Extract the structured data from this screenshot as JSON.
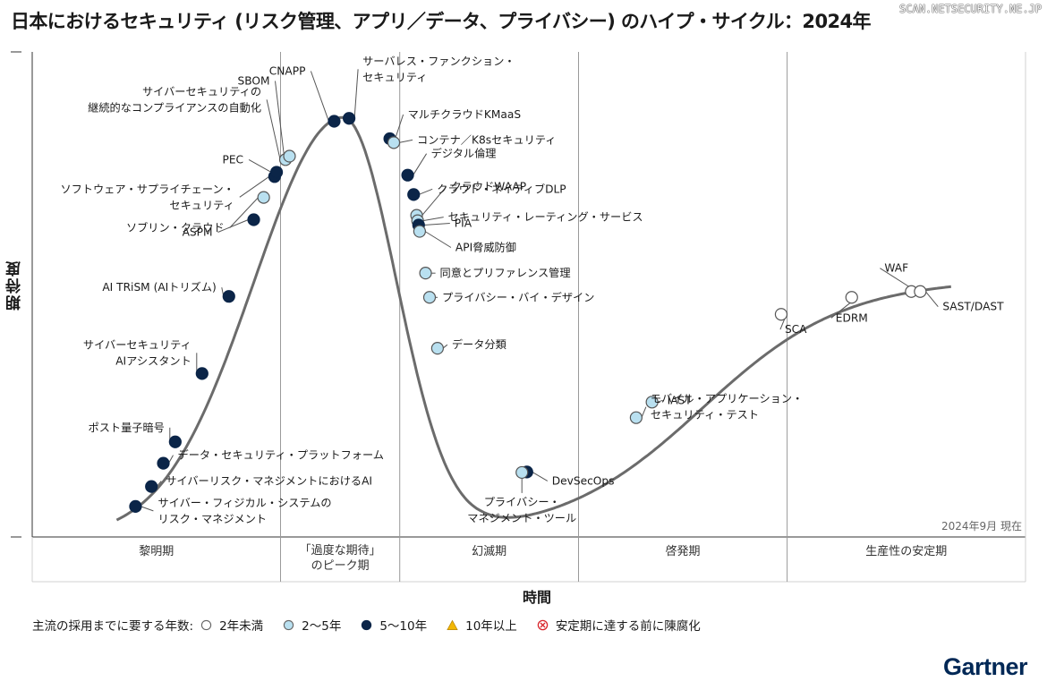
{
  "title": "日本におけるセキュリティ (リスク管理、アプリ／データ、プライバシー) のハイプ・サイクル：2024年",
  "watermark": "SCAN.NETSECURITY.NE.JP",
  "y_axis_label": "期待度",
  "x_axis_label": "時間",
  "as_of": "2024年9月 現在",
  "logo": "Gartner",
  "legend": {
    "title": "主流の採用までに要する年数:",
    "items": [
      {
        "key": "lt2",
        "label": "2年未満",
        "color": "#ffffff"
      },
      {
        "key": "2to5",
        "label": "2〜5年",
        "color": "#b9e0f0"
      },
      {
        "key": "5to10",
        "label": "5〜10年",
        "color": "#0b2548"
      },
      {
        "key": "gt10",
        "label": "10年以上",
        "color": "#f2b705"
      },
      {
        "key": "obsolete",
        "label": "安定期に達する前に陳腐化",
        "color": "#d9262c"
      }
    ]
  },
  "colors": {
    "lt2": "#ffffff",
    "2to5": "#b9e0f0",
    "5to10": "#0b2548",
    "curve": "#6b6b6b",
    "leader": "#555555"
  },
  "chart_data": {
    "type": "scatter",
    "x_range": [
      0,
      100
    ],
    "y_range": [
      0,
      100
    ],
    "phases": [
      {
        "name": "黎明期",
        "start": 0,
        "end": 25
      },
      {
        "name": "「過度な期待」のピーク期",
        "start": 25,
        "end": 37
      },
      {
        "name": "幻滅期",
        "start": 37,
        "end": 55
      },
      {
        "name": "啓発期",
        "start": 55,
        "end": 76
      },
      {
        "name": "生産性の安定期",
        "start": 76,
        "end": 100
      }
    ],
    "points": [
      {
        "name": "サイバー・フィジカル・システムのリスク・マネジメント",
        "lines": [
          "サイバー・フィジカル・システムの",
          "リスク・マネジメント"
        ],
        "x": 10.4,
        "y": 6.3,
        "cat": "5to10"
      },
      {
        "name": "サイバーリスク・マネジメントにおけるAI",
        "lines": [
          "サイバーリスク・マネジメントにおけるAI"
        ],
        "x": 12.0,
        "y": 10.4,
        "cat": "5to10"
      },
      {
        "name": "データ・セキュリティ・プラットフォーム",
        "lines": [
          "データ・セキュリティ・プラットフォーム"
        ],
        "x": 13.2,
        "y": 15.2,
        "cat": "5to10"
      },
      {
        "name": "ポスト量子暗号",
        "lines": [
          "ポスト量子暗号"
        ],
        "x": 14.4,
        "y": 19.6,
        "cat": "5to10"
      },
      {
        "name": "サイバーセキュリティAIアシスタント",
        "lines": [
          "サイバーセキュリティ",
          "AIアシスタント"
        ],
        "x": 17.1,
        "y": 33.7,
        "cat": "5to10"
      },
      {
        "name": "AI TRiSM (AIトリズム)",
        "lines": [
          "AI TRiSM (AIトリズム)"
        ],
        "x": 19.8,
        "y": 49.6,
        "cat": "5to10"
      },
      {
        "name": "ASPM",
        "lines": [
          "ASPM"
        ],
        "x": 22.3,
        "y": 65.4,
        "cat": "5to10"
      },
      {
        "name": "ソブリン・クラウド",
        "lines": [
          "ソブリン・クラウド"
        ],
        "x": 23.3,
        "y": 70.0,
        "cat": "2to5"
      },
      {
        "name": "ソフトウェア・サプライチェーン・セキュリティ",
        "lines": [
          "ソフトウェア・サプライチェーン・",
          "セキュリティ"
        ],
        "x": 24.4,
        "y": 74.3,
        "cat": "5to10"
      },
      {
        "name": "PEC",
        "lines": [
          "PEC"
        ],
        "x": 24.6,
        "y": 75.2,
        "cat": "5to10"
      },
      {
        "name": "サイバーセキュリティの継続的なコンプライアンスの自動化",
        "lines": [
          "サイバーセキュリティの",
          "継続的なコンプライアンスの自動化"
        ],
        "x": 25.5,
        "y": 77.8,
        "cat": "2to5"
      },
      {
        "name": "SBOM",
        "lines": [
          "SBOM"
        ],
        "x": 25.9,
        "y": 78.5,
        "cat": "2to5"
      },
      {
        "name": "CNAPP",
        "lines": [
          "CNAPP"
        ],
        "x": 30.4,
        "y": 85.7,
        "cat": "5to10"
      },
      {
        "name": "サーバレス・ファンクション・セキュリティ",
        "lines": [
          "サーバレス・ファンクション・",
          "セキュリティ"
        ],
        "x": 31.9,
        "y": 86.3,
        "cat": "5to10"
      },
      {
        "name": "マルチクラウドKMaaS",
        "lines": [
          "マルチクラウドKMaaS"
        ],
        "x": 36.0,
        "y": 82.1,
        "cat": "5to10"
      },
      {
        "name": "コンテナ／K8sセキュリティ",
        "lines": [
          "コンテナ／K8sセキュリティ"
        ],
        "x": 36.4,
        "y": 81.3,
        "cat": "2to5"
      },
      {
        "name": "デジタル倫理",
        "lines": [
          "デジタル倫理"
        ],
        "x": 37.8,
        "y": 74.6,
        "cat": "5to10"
      },
      {
        "name": "クラウド・ネイティブDLP",
        "lines": [
          "クラウド・ネイティブDLP"
        ],
        "x": 38.4,
        "y": 70.6,
        "cat": "5to10"
      },
      {
        "name": "クラウドWAAP",
        "lines": [
          "クラウドWAAP"
        ],
        "x": 38.7,
        "y": 66.3,
        "cat": "2to5"
      },
      {
        "name": "セキュリティ・レーティング・サービス",
        "lines": [
          "セキュリティ・レーティング・サービス"
        ],
        "x": 38.8,
        "y": 65.2,
        "cat": "2to5"
      },
      {
        "name": "PIA",
        "lines": [
          "PIA"
        ],
        "x": 38.9,
        "y": 64.3,
        "cat": "5to10"
      },
      {
        "name": "API脅威防御",
        "lines": [
          "API脅威防御"
        ],
        "x": 39.0,
        "y": 63.0,
        "cat": "2to5"
      },
      {
        "name": "同意とプリファレンス管理",
        "lines": [
          "同意とプリファレンス管理"
        ],
        "x": 39.6,
        "y": 54.4,
        "cat": "2to5"
      },
      {
        "name": "プライバシー・バイ・デザイン",
        "lines": [
          "プライバシー・バイ・デザイン"
        ],
        "x": 40.0,
        "y": 49.4,
        "cat": "2to5"
      },
      {
        "name": "データ分類",
        "lines": [
          "データ分類"
        ],
        "x": 40.8,
        "y": 38.9,
        "cat": "2to5"
      },
      {
        "name": "DevSecOps",
        "lines": [
          "DevSecOps"
        ],
        "x": 49.8,
        "y": 13.4,
        "cat": "5to10"
      },
      {
        "name": "プライバシー・マネジメント・ツール",
        "lines": [
          "プライバシー・",
          "マネジメント・ツール"
        ],
        "x": 49.3,
        "y": 13.3,
        "cat": "2to5"
      },
      {
        "name": "モバイル・アプリケーション・セキュリティ・テスト",
        "lines": [
          "モバイル・アプリケーション・",
          "セキュリティ・テスト"
        ],
        "x": 60.8,
        "y": 24.6,
        "cat": "2to5"
      },
      {
        "name": "IAST",
        "lines": [
          "IAST"
        ],
        "x": 62.4,
        "y": 27.8,
        "cat": "2to5"
      },
      {
        "name": "SCA",
        "lines": [
          "SCA"
        ],
        "x": 75.4,
        "y": 45.9,
        "cat": "lt2"
      },
      {
        "name": "EDRM",
        "lines": [
          "EDRM"
        ],
        "x": 82.5,
        "y": 49.4,
        "cat": "lt2"
      },
      {
        "name": "WAF",
        "lines": [
          "WAF"
        ],
        "x": 88.5,
        "y": 50.6,
        "cat": "lt2"
      },
      {
        "name": "SAST/DAST",
        "lines": [
          "SAST/DAST"
        ],
        "x": 89.4,
        "y": 50.6,
        "cat": "lt2"
      }
    ]
  }
}
